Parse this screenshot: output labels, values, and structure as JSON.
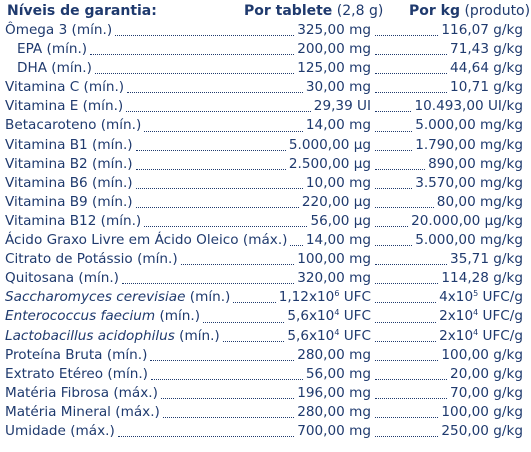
{
  "header": {
    "title": "Níveis de garantia:",
    "col_tablet_bold": "Por tablete",
    "col_tablet_rest": " (2,8 g)",
    "col_kg_bold": "Por kg",
    "col_kg_rest": " (produto)"
  },
  "rows": [
    {
      "label": "Ômega 3 (mín.)",
      "tablet": "325,00 mg",
      "kg": "116,07 g/kg"
    },
    {
      "label": "EPA (mín.)",
      "tablet": "200,00 mg",
      "kg": "71,43 g/kg",
      "indent": true
    },
    {
      "label": "DHA (mín.)",
      "tablet": "125,00 mg",
      "kg": "44,64 g/kg",
      "indent": true
    },
    {
      "label": "Vitamina C (mín.)",
      "tablet": "30,00 mg",
      "kg": "10,71 g/kg"
    },
    {
      "label": "Vitamina E (mín.)",
      "tablet": "29,39 UI",
      "kg": "10.493,00 UI/kg"
    },
    {
      "label": "Betacaroteno (mín.)",
      "tablet": "14,00 mg",
      "kg": "5.000,00 mg/kg"
    },
    {
      "label": "Vitamina B1 (mín.)",
      "tablet": "5.000,00 µg",
      "kg": "1.790,00 mg/kg"
    },
    {
      "label": "Vitamina B2 (mín.)",
      "tablet": "2.500,00 µg",
      "kg": "890,00 mg/kg"
    },
    {
      "label": "Vitamina B6 (mín.)",
      "tablet": "10,00 mg",
      "kg": "3.570,00 mg/kg"
    },
    {
      "label": "Vitamina B9 (mín.)",
      "tablet": "220,00 µg",
      "kg": "80,00 mg/kg"
    },
    {
      "label": "Vitamina B12 (mín.)",
      "tablet": "56,00 µg",
      "kg": "20.000,00 µg/kg"
    },
    {
      "label": "Ácido Graxo Livre em Ácido Oleico (máx.)",
      "tablet": "14,00 mg",
      "kg": "5.000,00 mg/kg"
    },
    {
      "label": "Citrato de Potássio (mín.)",
      "tablet": "100,00 mg",
      "kg": "35,71 g/kg"
    },
    {
      "label": "Quitosana (mín.)",
      "tablet": "320,00 mg",
      "kg": "114,28 g/kg"
    },
    {
      "label_italic": "Saccharomyces cerevisiae",
      "label": " (mín.)",
      "tablet_base": "1,12x10",
      "tablet_exp": "6",
      "tablet_unit": " UFC",
      "kg_base": "4x10",
      "kg_exp": "5",
      "kg_unit": " UFC/g"
    },
    {
      "label_italic": "Enterococcus faecium",
      "label": " (mín.)",
      "tablet_base": "5,6x10",
      "tablet_exp": "4",
      "tablet_unit": " UFC",
      "kg_base": "2x10",
      "kg_exp": "4",
      "kg_unit": " UFC/g"
    },
    {
      "label_italic": "Lactobacillus acidophilus",
      "label": " (mín.)",
      "tablet_base": "5,6x10",
      "tablet_exp": "4",
      "tablet_unit": " UFC",
      "kg_base": "2x10",
      "kg_exp": "4",
      "kg_unit": " UFC/g"
    },
    {
      "label": "Proteína Bruta (mín.)",
      "tablet": "280,00 mg",
      "kg": "100,00 g/kg"
    },
    {
      "label": "Extrato Etéreo (mín.)",
      "tablet": "56,00 mg",
      "kg": "20,00 g/kg"
    },
    {
      "label": "Matéria Fibrosa (máx.)",
      "tablet": "196,00 mg",
      "kg": "70,00 g/kg"
    },
    {
      "label": "Matéria Mineral (máx.)",
      "tablet": "280,00 mg",
      "kg": "100,00 g/kg"
    },
    {
      "label": "Umidade (máx.)",
      "tablet": "700,00 mg",
      "kg": "250,00 g/kg"
    }
  ]
}
